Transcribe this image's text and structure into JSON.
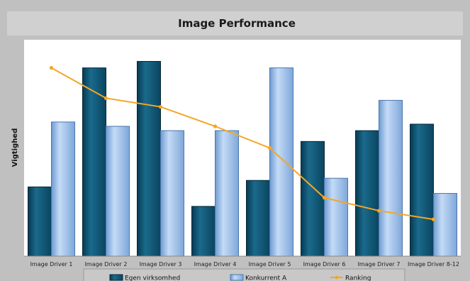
{
  "chart_data": {
    "type": "bar",
    "title": "Image Performance",
    "xlabel": "",
    "ylabel": "Vigtighed",
    "ylim": [
      0,
      100
    ],
    "grid": false,
    "legend_position": "bottom",
    "categories": [
      "Image Driver 1",
      "Image Driver 2",
      "Image Driver 3",
      "Image Driver 4",
      "Image Driver 5",
      "Image Driver 6",
      "Image Driver 7",
      "Image Driver 8-12"
    ],
    "series": [
      {
        "name": "Egen virksomhed",
        "type": "bar",
        "color": "#0b4f6c",
        "values": [
          32,
          87,
          90,
          23,
          35,
          53,
          58,
          61
        ]
      },
      {
        "name": "Konkurrent A",
        "type": "bar",
        "color": "#8fb6e6",
        "values": [
          62,
          60,
          58,
          58,
          87,
          36,
          72,
          29
        ]
      },
      {
        "name": "Ranking",
        "type": "line",
        "color": "#f5a623",
        "values": [
          87,
          73,
          69,
          60,
          50,
          27,
          21,
          17
        ]
      }
    ]
  },
  "colors": {
    "page_background": "#c0c0c0",
    "plot_background": "#ffffff",
    "legend_background": "#c8c8c8"
  }
}
